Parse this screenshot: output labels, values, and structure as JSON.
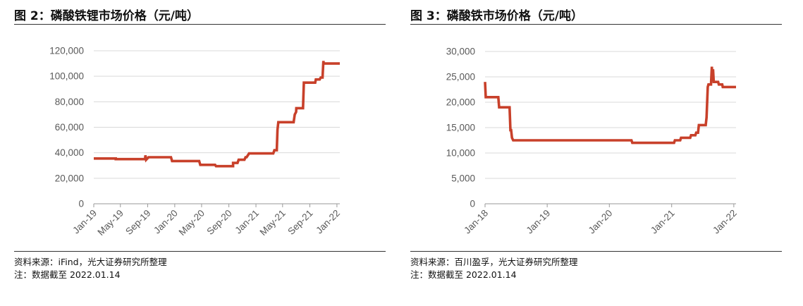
{
  "figures": [
    {
      "title": "图 2：磷酸铁锂市场价格（元/吨）",
      "source": "资料来源：iFind，光大证券研究所整理",
      "note": "注：数据截至 2022.01.14"
    },
    {
      "title": "图 3：磷酸铁市场价格（元/吨）",
      "source": "资料来源：百川盈孚，光大证券研究所整理",
      "note": "注：数据截至 2022.01.14"
    }
  ],
  "chart_data": [
    {
      "type": "line",
      "title": "",
      "xlabel": "",
      "ylabel": "",
      "ylim": [
        0,
        120000
      ],
      "y_ticks": [
        0,
        20000,
        40000,
        60000,
        80000,
        100000,
        120000
      ],
      "y_tick_labels": [
        "0",
        "20,000",
        "40,000",
        "60,000",
        "80,000",
        "100,000",
        "120,000"
      ],
      "x_ticks": [
        "2019-01",
        "2019-05",
        "2019-09",
        "2020-01",
        "2020-05",
        "2020-09",
        "2021-01",
        "2021-05",
        "2021-09",
        "2022-01"
      ],
      "x_tick_labels": [
        "Jan-19",
        "May-19",
        "Sep-19",
        "Jan-20",
        "May-20",
        "Sep-20",
        "Jan-21",
        "May-21",
        "Sep-21",
        "Jan-22"
      ],
      "xlim": [
        "2019-01-01",
        "2022-01-14"
      ],
      "grid": "horizontal",
      "legend": "none",
      "line_color": "#C8402A",
      "series": [
        {
          "x": [
            "2019-01-01",
            "2019-04-10",
            "2019-04-10",
            "2019-08-20",
            "2019-08-22",
            "2019-08-25",
            "2019-09-05",
            "2019-09-05",
            "2019-12-15",
            "2019-12-20",
            "2020-04-20",
            "2020-04-25",
            "2020-07-01",
            "2020-07-05",
            "2020-09-20",
            "2020-09-20",
            "2020-10-10",
            "2020-10-15",
            "2020-11-10",
            "2020-11-15",
            "2020-11-20",
            "2020-12-01",
            "2021-03-20",
            "2021-03-25",
            "2021-04-05",
            "2021-04-08",
            "2021-04-12",
            "2021-06-20",
            "2021-06-25",
            "2021-07-01",
            "2021-07-02",
            "2021-08-01",
            "2021-08-05",
            "2021-09-25",
            "2021-09-28",
            "2021-10-15",
            "2021-10-20",
            "2021-10-28",
            "2021-11-01",
            "2021-11-03",
            "2021-11-08",
            "2022-01-14"
          ],
          "y": [
            35500,
            35500,
            35000,
            35000,
            38000,
            34500,
            36500,
            36500,
            36500,
            33500,
            33500,
            30500,
            30500,
            29500,
            29500,
            32000,
            32000,
            34500,
            34500,
            36500,
            36500,
            39500,
            39500,
            42000,
            42000,
            58000,
            64000,
            64000,
            70000,
            72000,
            75000,
            75000,
            95000,
            95000,
            97500,
            97500,
            99000,
            99000,
            112000,
            110000,
            110000,
            110000
          ]
        }
      ]
    },
    {
      "type": "line",
      "title": "",
      "xlabel": "",
      "ylabel": "",
      "ylim": [
        0,
        30000
      ],
      "y_ticks": [
        0,
        5000,
        10000,
        15000,
        20000,
        25000,
        30000
      ],
      "y_tick_labels": [
        "0",
        "5,000",
        "10,000",
        "15,000",
        "20,000",
        "25,000",
        "30,000"
      ],
      "x_ticks": [
        "2018-01",
        "2019-01",
        "2020-01",
        "2021-01",
        "2022-01"
      ],
      "x_tick_labels": [
        "Jan-18",
        "Jan-19",
        "Jan-20",
        "Jan-21",
        "Jan-22"
      ],
      "xlim": [
        "2018-01-01",
        "2022-01-14"
      ],
      "grid": "horizontal",
      "legend": "none",
      "line_color": "#C8402A",
      "series": [
        {
          "x": [
            "2018-01-01",
            "2018-01-05",
            "2018-01-15",
            "2018-03-20",
            "2018-03-25",
            "2018-05-25",
            "2018-05-30",
            "2018-06-03",
            "2018-06-08",
            "2018-06-15",
            "2018-06-20",
            "2020-05-10",
            "2020-05-15",
            "2021-01-15",
            "2021-01-20",
            "2021-02-20",
            "2021-02-25",
            "2021-04-20",
            "2021-04-25",
            "2021-05-20",
            "2021-05-25",
            "2021-06-05",
            "2021-06-10",
            "2021-07-20",
            "2021-07-25",
            "2021-08-01",
            "2021-08-05",
            "2021-08-20",
            "2021-08-25",
            "2021-08-28",
            "2021-09-01",
            "2021-09-05",
            "2021-09-10",
            "2021-10-01",
            "2021-10-05",
            "2021-10-25",
            "2021-10-28",
            "2022-01-14"
          ],
          "y": [
            24000,
            21000,
            21000,
            21000,
            19000,
            19000,
            14500,
            14500,
            13000,
            12500,
            12500,
            12500,
            12000,
            12000,
            12500,
            12500,
            13000,
            13000,
            13500,
            13500,
            14000,
            14000,
            15500,
            15500,
            17000,
            23000,
            23500,
            23500,
            27000,
            25000,
            26500,
            24000,
            24000,
            24000,
            23500,
            23500,
            23000,
            23000
          ]
        }
      ]
    }
  ]
}
